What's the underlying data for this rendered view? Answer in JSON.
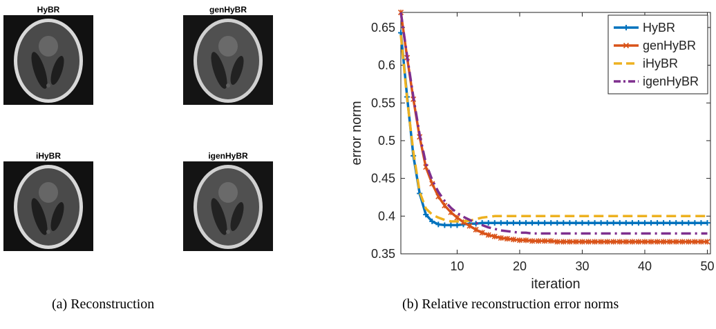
{
  "panel_a": {
    "images": [
      {
        "title": "HyBR"
      },
      {
        "title": "genHyBR"
      },
      {
        "title": "iHyBR"
      },
      {
        "title": "igenHyBR"
      }
    ],
    "caption": "(a) Reconstruction"
  },
  "panel_b": {
    "caption": "(b) Relative reconstruction error norms"
  },
  "chart_data": {
    "type": "line",
    "title": "",
    "xlabel": "iteration",
    "ylabel": "error norm",
    "xlim": [
      1,
      50.5
    ],
    "ylim": [
      0.35,
      0.67
    ],
    "xticks": [
      10,
      20,
      30,
      40,
      50
    ],
    "yticks": [
      0.35,
      0.4,
      0.45,
      0.5,
      0.55,
      0.6,
      0.65
    ],
    "grid": false,
    "legend_position": "top-right",
    "series": [
      {
        "name": "HyBR",
        "color": "#0072BD",
        "style": "solid",
        "marker": "plus",
        "x": [
          1,
          2,
          3,
          4,
          5,
          6,
          7,
          8,
          9,
          10,
          11,
          12,
          13,
          14,
          15,
          16,
          17,
          18,
          19,
          20,
          21,
          22,
          23,
          24,
          25,
          26,
          27,
          28,
          29,
          30,
          31,
          32,
          33,
          34,
          35,
          36,
          37,
          38,
          39,
          40,
          41,
          42,
          43,
          44,
          45,
          46,
          47,
          48,
          49,
          50
        ],
        "values": [
          0.643,
          0.558,
          0.48,
          0.43,
          0.402,
          0.393,
          0.389,
          0.388,
          0.388,
          0.388,
          0.389,
          0.39,
          0.39,
          0.391,
          0.391,
          0.391,
          0.391,
          0.391,
          0.391,
          0.391,
          0.391,
          0.391,
          0.391,
          0.391,
          0.391,
          0.391,
          0.391,
          0.391,
          0.391,
          0.391,
          0.391,
          0.391,
          0.391,
          0.391,
          0.391,
          0.391,
          0.391,
          0.391,
          0.391,
          0.391,
          0.391,
          0.391,
          0.391,
          0.391,
          0.391,
          0.391,
          0.391,
          0.391,
          0.391,
          0.391
        ]
      },
      {
        "name": "genHyBR",
        "color": "#D95319",
        "style": "solid",
        "marker": "star",
        "x": [
          1,
          2,
          3,
          4,
          5,
          6,
          7,
          8,
          9,
          10,
          11,
          12,
          13,
          14,
          15,
          16,
          17,
          18,
          19,
          20,
          21,
          22,
          23,
          24,
          25,
          26,
          27,
          28,
          29,
          30,
          31,
          32,
          33,
          34,
          35,
          36,
          37,
          38,
          39,
          40,
          41,
          42,
          43,
          44,
          45,
          46,
          47,
          48,
          49,
          50
        ],
        "values": [
          0.67,
          0.61,
          0.555,
          0.505,
          0.465,
          0.443,
          0.426,
          0.414,
          0.405,
          0.398,
          0.392,
          0.387,
          0.382,
          0.378,
          0.375,
          0.373,
          0.371,
          0.37,
          0.369,
          0.368,
          0.368,
          0.367,
          0.367,
          0.367,
          0.367,
          0.366,
          0.366,
          0.366,
          0.366,
          0.366,
          0.366,
          0.366,
          0.366,
          0.366,
          0.366,
          0.366,
          0.366,
          0.366,
          0.366,
          0.366,
          0.366,
          0.366,
          0.366,
          0.366,
          0.366,
          0.366,
          0.366,
          0.366,
          0.366,
          0.366
        ]
      },
      {
        "name": "iHyBR",
        "color": "#EDB120",
        "style": "dashed",
        "marker": "none",
        "x": [
          1,
          2,
          3,
          4,
          5,
          6,
          7,
          8,
          9,
          10,
          11,
          12,
          13,
          14,
          15,
          16,
          17,
          18,
          19,
          20,
          21,
          22,
          23,
          24,
          25,
          26,
          27,
          28,
          29,
          30,
          31,
          32,
          33,
          34,
          35,
          36,
          37,
          38,
          39,
          40,
          41,
          42,
          43,
          44,
          45,
          46,
          47,
          48,
          49,
          50
        ],
        "values": [
          0.64,
          0.555,
          0.485,
          0.432,
          0.41,
          0.402,
          0.398,
          0.395,
          0.393,
          0.393,
          0.393,
          0.394,
          0.396,
          0.398,
          0.399,
          0.4,
          0.4,
          0.4,
          0.4,
          0.4,
          0.4,
          0.4,
          0.4,
          0.4,
          0.4,
          0.4,
          0.4,
          0.4,
          0.4,
          0.4,
          0.4,
          0.4,
          0.4,
          0.4,
          0.4,
          0.4,
          0.4,
          0.4,
          0.4,
          0.4,
          0.4,
          0.4,
          0.4,
          0.4,
          0.4,
          0.4,
          0.4,
          0.4,
          0.4,
          0.4
        ]
      },
      {
        "name": "igenHyBR",
        "color": "#7E2F8E",
        "style": "dashdot",
        "marker": "none",
        "x": [
          1,
          2,
          3,
          4,
          5,
          6,
          7,
          8,
          9,
          10,
          11,
          12,
          13,
          14,
          15,
          16,
          17,
          18,
          19,
          20,
          21,
          22,
          23,
          24,
          25,
          26,
          27,
          28,
          29,
          30,
          31,
          32,
          33,
          34,
          35,
          36,
          37,
          38,
          39,
          40,
          41,
          42,
          43,
          44,
          45,
          46,
          47,
          48,
          49,
          50
        ],
        "values": [
          0.67,
          0.612,
          0.558,
          0.508,
          0.47,
          0.448,
          0.432,
          0.42,
          0.411,
          0.404,
          0.399,
          0.395,
          0.391,
          0.388,
          0.385,
          0.383,
          0.381,
          0.38,
          0.379,
          0.378,
          0.378,
          0.377,
          0.377,
          0.377,
          0.377,
          0.377,
          0.377,
          0.377,
          0.377,
          0.377,
          0.377,
          0.377,
          0.377,
          0.377,
          0.377,
          0.377,
          0.377,
          0.377,
          0.377,
          0.377,
          0.377,
          0.377,
          0.377,
          0.377,
          0.377,
          0.377,
          0.377,
          0.377,
          0.377,
          0.377
        ]
      }
    ]
  }
}
